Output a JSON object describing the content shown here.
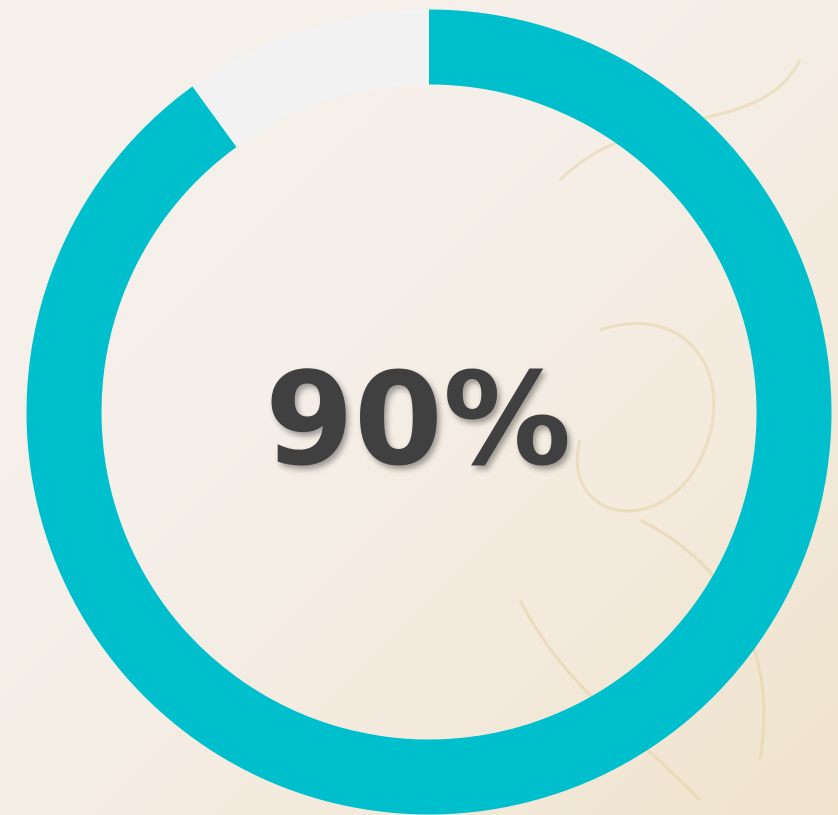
{
  "chart_data": {
    "type": "donut",
    "values": [
      90,
      10
    ],
    "value_labels": [
      "90%",
      null
    ],
    "colors": [
      "#00bfcc",
      "#f2f2f2"
    ]
  }
}
